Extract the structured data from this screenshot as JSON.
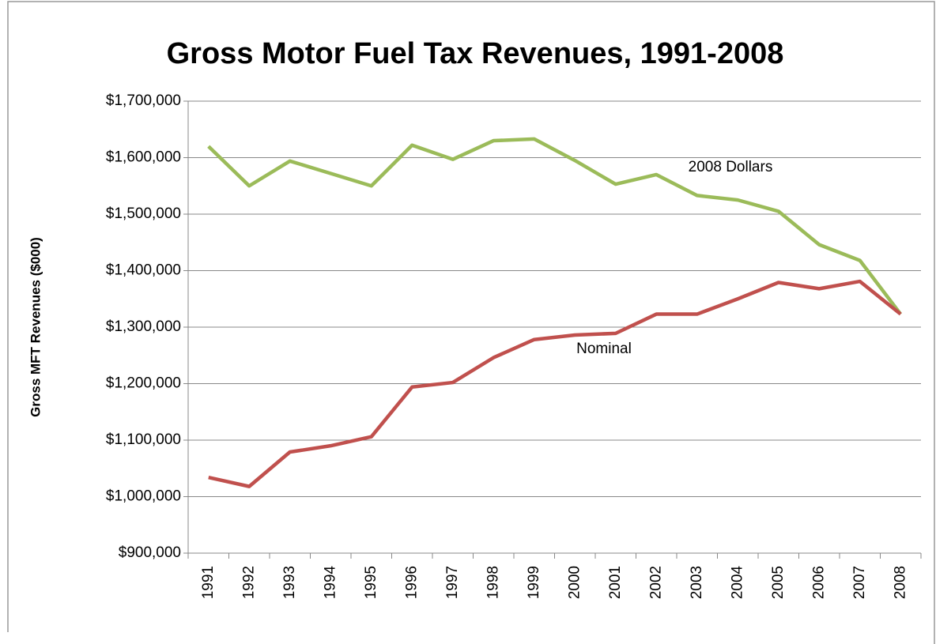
{
  "chart_data": {
    "type": "line",
    "title": "Gross Motor Fuel Tax Revenues, 1991-2008",
    "ylabel": "Gross MFT Revenues ($000)",
    "categories": [
      "1991",
      "1992",
      "1993",
      "1994",
      "1995",
      "1996",
      "1997",
      "1998",
      "1999",
      "2000",
      "2001",
      "2002",
      "2003",
      "2004",
      "2005",
      "2006",
      "2007",
      "2008"
    ],
    "series": [
      {
        "name": "2008 Dollars",
        "color": "#9bbb59",
        "values": [
          1620000,
          1550000,
          1594000,
          1572000,
          1550000,
          1622000,
          1597000,
          1630000,
          1633000,
          1595000,
          1553000,
          1570000,
          1533000,
          1525000,
          1505000,
          1446000,
          1418000,
          1323000
        ]
      },
      {
        "name": "Nominal",
        "color": "#c0504d",
        "values": [
          1034000,
          1018000,
          1079000,
          1090000,
          1106000,
          1194000,
          1202000,
          1246000,
          1278000,
          1286000,
          1289000,
          1323000,
          1323000,
          1350000,
          1379000,
          1368000,
          1381000,
          1323000
        ]
      }
    ],
    "ylim": [
      900000,
      1700000
    ],
    "yticks": [
      {
        "value": 900000,
        "label": "$900,000"
      },
      {
        "value": 1000000,
        "label": "$1,000,000"
      },
      {
        "value": 1100000,
        "label": "$1,100,000"
      },
      {
        "value": 1200000,
        "label": "$1,200,000"
      },
      {
        "value": 1300000,
        "label": "$1,300,000"
      },
      {
        "value": 1400000,
        "label": "$1,400,000"
      },
      {
        "value": 1500000,
        "label": "$1,500,000"
      },
      {
        "value": 1600000,
        "label": "$1,600,000"
      },
      {
        "value": 1700000,
        "label": "$1,700,000"
      }
    ],
    "grid": true
  }
}
